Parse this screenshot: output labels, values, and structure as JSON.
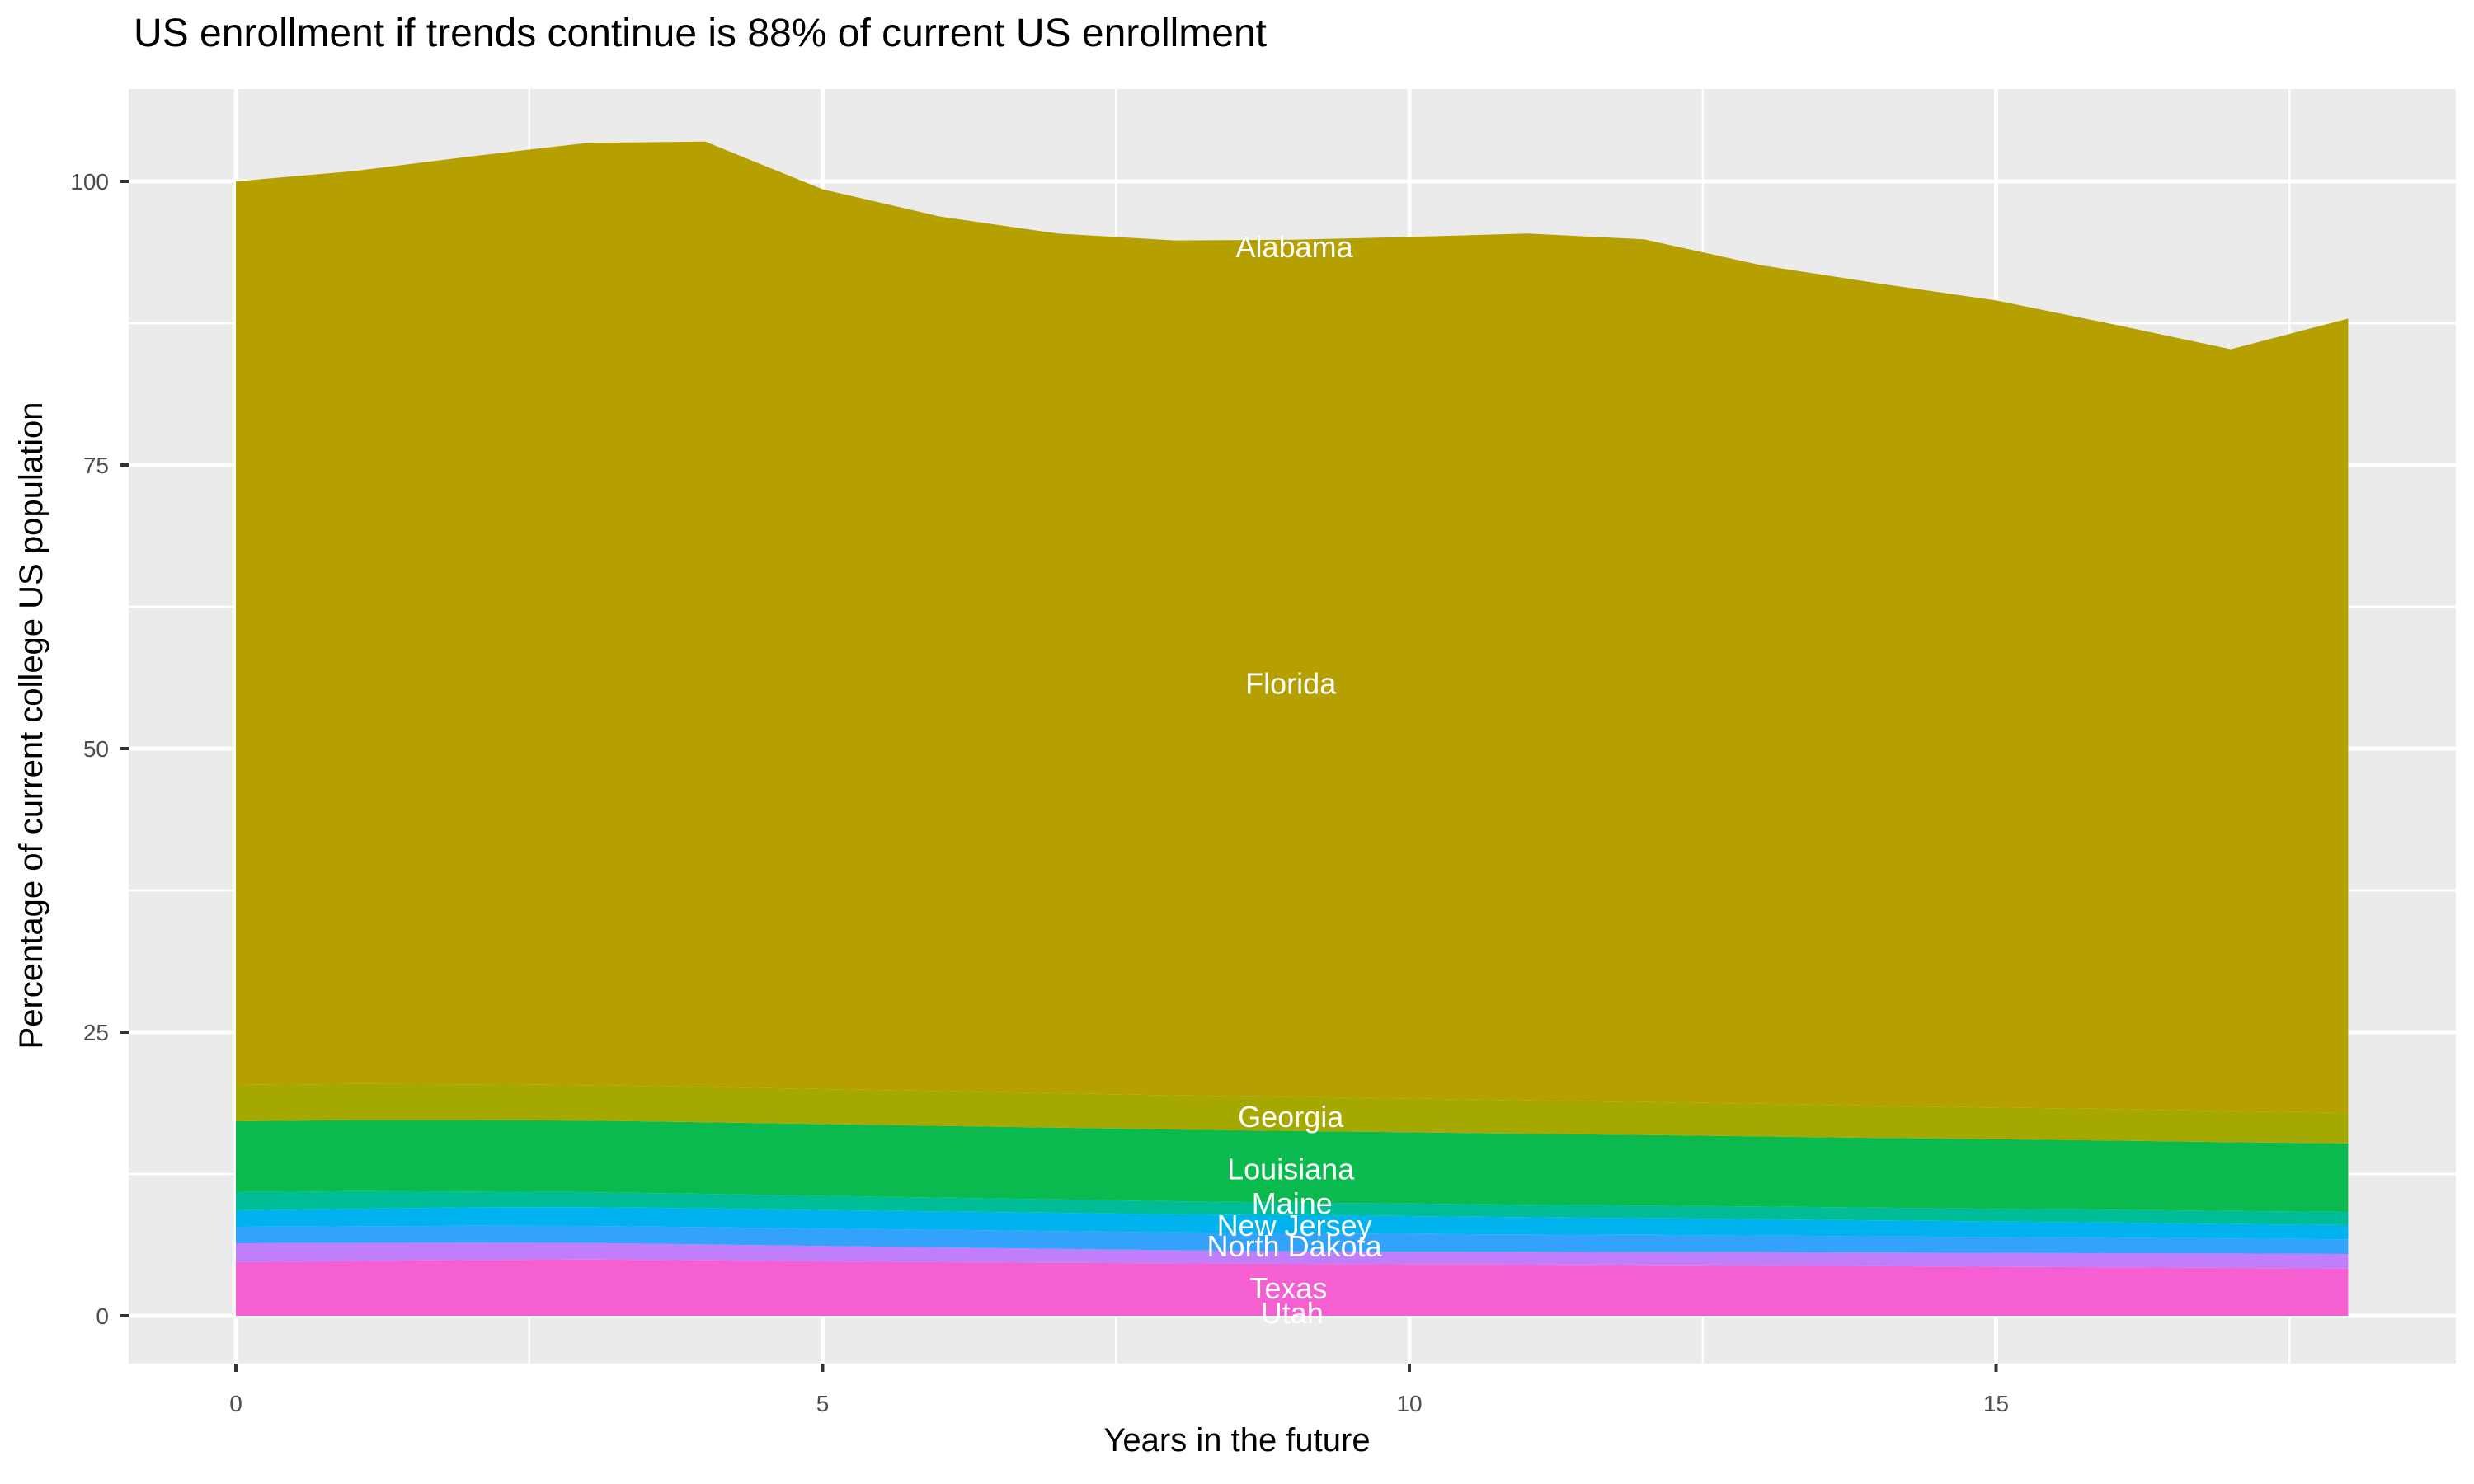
{
  "title": "US enrollment if trends continue is 88% of current US enrollment",
  "chart_data": {
    "type": "area",
    "stacked": true,
    "title": "US enrollment if trends continue is 88% of current US enrollment",
    "xlabel": "Years in the future",
    "ylabel": "Percentage of current college US population",
    "x": [
      0,
      1,
      2,
      3,
      4,
      5,
      6,
      7,
      8,
      9,
      10,
      11,
      12,
      13,
      14,
      15,
      16,
      17,
      18
    ],
    "x_ticks": [
      0,
      5,
      10,
      15
    ],
    "x_minor_ticks": [
      2.5,
      7.5,
      12.5,
      17.5
    ],
    "y_ticks": [
      0,
      25,
      50,
      75,
      100
    ],
    "y_minor_ticks": [
      12.5,
      37.5,
      62.5,
      87.5
    ],
    "xlim": [
      -0.9,
      18.9
    ],
    "ylim": [
      -4.2,
      108.1
    ],
    "grid": true,
    "legend": "none",
    "panel_bg": "#EBEBEB",
    "grid_color": "#FFFFFF",
    "tick_color": "#333333",
    "tick_label_color": "#4D4D4D",
    "series": [
      {
        "name": "Utah",
        "color": "#F55FD2",
        "values": [
          4.72,
          4.82,
          4.92,
          4.95,
          4.88,
          4.8,
          4.73,
          4.67,
          4.62,
          4.58,
          4.54,
          4.5,
          4.46,
          4.42,
          4.37,
          4.32,
          4.27,
          4.21,
          4.15
        ]
      },
      {
        "name": "Texas",
        "color": "#C07EFA",
        "values": [
          1.68,
          1.61,
          1.53,
          1.47,
          1.42,
          1.36,
          1.3,
          1.23,
          1.16,
          1.1,
          1.12,
          1.14,
          1.17,
          1.19,
          1.21,
          1.23,
          1.26,
          1.28,
          1.3
        ]
      },
      {
        "name": "North Dakota",
        "color": "#33A2FA",
        "values": [
          1.45,
          1.46,
          1.48,
          1.5,
          1.52,
          1.53,
          1.55,
          1.57,
          1.58,
          1.6,
          1.57,
          1.53,
          1.5,
          1.47,
          1.43,
          1.4,
          1.37,
          1.33,
          1.3
        ]
      },
      {
        "name": "New Jersey",
        "color": "#00B3EE",
        "values": [
          1.45,
          1.55,
          1.63,
          1.66,
          1.65,
          1.64,
          1.62,
          1.61,
          1.6,
          1.6,
          1.56,
          1.52,
          1.48,
          1.44,
          1.4,
          1.36,
          1.32,
          1.28,
          1.25
        ]
      },
      {
        "name": "Maine",
        "color": "#00BD98",
        "values": [
          1.6,
          1.55,
          1.4,
          1.32,
          1.28,
          1.25,
          1.22,
          1.18,
          1.14,
          1.1,
          1.11,
          1.11,
          1.12,
          1.12,
          1.13,
          1.13,
          1.14,
          1.14,
          1.15
        ]
      },
      {
        "name": "Louisiana",
        "color": "#0BBA4E",
        "values": [
          6.25,
          6.27,
          6.29,
          6.31,
          6.32,
          6.32,
          6.32,
          6.32,
          6.32,
          6.32,
          6.28,
          6.25,
          6.21,
          6.18,
          6.15,
          6.12,
          6.09,
          6.07,
          6.05
        ]
      },
      {
        "name": "Georgia",
        "color": "#A4A800",
        "values": [
          3.2,
          3.18,
          3.16,
          3.13,
          3.11,
          3.09,
          3.07,
          3.04,
          3.02,
          3.0,
          2.97,
          2.93,
          2.9,
          2.87,
          2.83,
          2.8,
          2.77,
          2.73,
          2.7
        ]
      },
      {
        "name": "Florida",
        "color": "#B5A000",
        "values": [
          79.65,
          80.46,
          81.79,
          83.06,
          83.32,
          79.31,
          77.09,
          75.78,
          75.36,
          75.55,
          75.95,
          76.42,
          76.06,
          73.91,
          72.48,
          71.14,
          69.18,
          67.16,
          70.0
        ]
      },
      {
        "name": "Alabama",
        "color": "#B5A000",
        "values": [
          0,
          0,
          0,
          0,
          0,
          0,
          0,
          0,
          0,
          0,
          0,
          0,
          0,
          0,
          0,
          0,
          0,
          0,
          0
        ]
      }
    ],
    "stack_totals": [
      100.0,
      100.9,
      102.2,
      103.4,
      103.5,
      99.3,
      96.9,
      95.4,
      94.8,
      94.85,
      95.1,
      95.4,
      94.9,
      92.6,
      91.0,
      89.5,
      87.4,
      85.2,
      87.9
    ],
    "area_labels": [
      {
        "text": "Alabama",
        "x": 9.02,
        "y": 94.2
      },
      {
        "text": "Florida",
        "x": 8.99,
        "y": 55.7
      },
      {
        "text": "Georgia",
        "x": 8.99,
        "y": 17.5
      },
      {
        "text": "Louisiana",
        "x": 8.99,
        "y": 12.9
      },
      {
        "text": "Maine",
        "x": 9.0,
        "y": 9.9
      },
      {
        "text": "New Jersey",
        "x": 9.02,
        "y": 7.9
      },
      {
        "text": "North Dakota",
        "x": 9.02,
        "y": 6.1
      },
      {
        "text": "Texas",
        "x": 8.97,
        "y": 2.4
      },
      {
        "text": "Utah",
        "x": 9.0,
        "y": 0.2
      }
    ],
    "area_label_color": "#FFFFFF"
  }
}
